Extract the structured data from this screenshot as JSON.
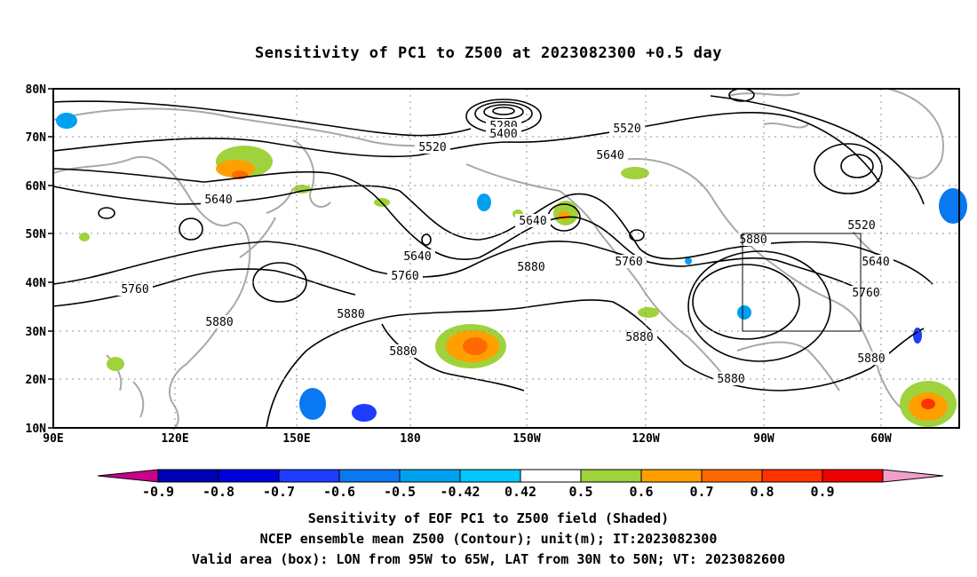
{
  "title": "Sensitivity of PC1 to Z500 at 2023082300 +0.5 day",
  "lat_labels": [
    "80N",
    "70N",
    "60N",
    "50N",
    "40N",
    "30N",
    "20N",
    "10N"
  ],
  "lon_labels": [
    "90E",
    "120E",
    "150E",
    "180",
    "150W",
    "120W",
    "90W",
    "60W"
  ],
  "contour_labels": [
    "5280",
    "5400",
    "5520",
    "5520",
    "5520",
    "5640",
    "5640",
    "5640",
    "5640",
    "5640",
    "5760",
    "5760",
    "5760",
    "5760",
    "5880",
    "5880",
    "5880",
    "5880",
    "5880",
    "5880",
    "5880",
    "5880"
  ],
  "colorbar": {
    "labels": [
      "-0.9",
      "-0.8",
      "-0.7",
      "-0.6",
      "-0.5",
      "-0.42",
      "0.42",
      "0.5",
      "0.6",
      "0.7",
      "0.8",
      "0.9"
    ],
    "colors": [
      "#c8008c",
      "#0000b4",
      "#0000dc",
      "#1e3cff",
      "#0a78f0",
      "#00a0f0",
      "#00c8ff",
      "#ffffff",
      "#a0d23c",
      "#ffa000",
      "#ff6a00",
      "#ff3200",
      "#f00000",
      "#f0a0c8"
    ]
  },
  "valid_box": {
    "lon_range": [
      "95W",
      "65W"
    ],
    "lat_range": [
      "30N",
      "50N"
    ]
  },
  "captions": {
    "line1": "Sensitivity of EOF PC1 to Z500 field (Shaded)",
    "line2": "NCEP ensemble mean Z500 (Contour); unit(m); IT:2023082300",
    "line3": "Valid area (box): LON from 95W to 65W, LAT from 30N to 50N; VT: 2023082600"
  }
}
